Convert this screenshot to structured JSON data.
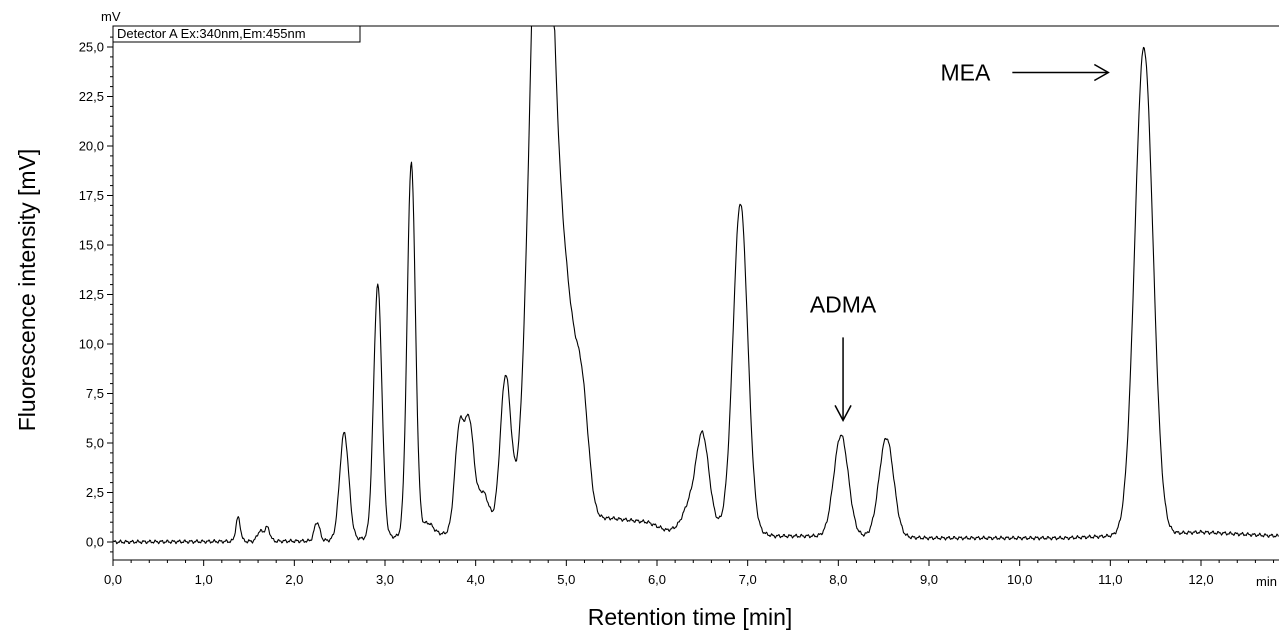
{
  "chart_data": {
    "type": "line",
    "xlabel": "Retention time [min]",
    "ylabel": "Fluorescence intensity [mV]",
    "x_unit": "min",
    "y_unit": "mV",
    "xlim": [
      0,
      12.85
    ],
    "ylim": [
      -0.75,
      26.0
    ],
    "x_ticks": [
      "0,0",
      "1,0",
      "2,0",
      "3,0",
      "4,0",
      "5,0",
      "6,0",
      "7,0",
      "8,0",
      "9,0",
      "10,0",
      "11,0",
      "12,0"
    ],
    "y_ticks": [
      "0,0",
      "2,5",
      "5,0",
      "7,5",
      "10,0",
      "12,5",
      "15,0",
      "17,5",
      "20,0",
      "22,5",
      "25,0"
    ],
    "grid": false,
    "legend": "top-left",
    "series": [
      {
        "name": "Detector A Ex:340nm,Em:455nm",
        "baseline": [
          [
            0,
            0.0
          ],
          [
            2.2,
            0.05
          ],
          [
            2.5,
            0.1
          ],
          [
            3.6,
            0.4
          ],
          [
            4.1,
            0.5
          ],
          [
            4.45,
            0.5
          ],
          [
            5.35,
            1.2
          ],
          [
            5.5,
            1.2
          ],
          [
            5.9,
            1.0
          ],
          [
            6.1,
            0.6
          ],
          [
            6.6,
            0.9
          ],
          [
            7.3,
            0.3
          ],
          [
            8.3,
            0.3
          ],
          [
            9.0,
            0.2
          ],
          [
            10.5,
            0.2
          ],
          [
            11.0,
            0.3
          ],
          [
            12.0,
            0.5
          ],
          [
            12.85,
            0.3
          ]
        ],
        "peaks": [
          {
            "rt": 1.38,
            "height": 1.2,
            "width": 0.025
          },
          {
            "rt": 1.62,
            "height": 0.5,
            "width": 0.03
          },
          {
            "rt": 1.7,
            "height": 0.7,
            "width": 0.03
          },
          {
            "rt": 2.25,
            "height": 0.95,
            "width": 0.03
          },
          {
            "rt": 2.55,
            "height": 5.4,
            "width": 0.05
          },
          {
            "rt": 2.92,
            "height": 12.8,
            "width": 0.045
          },
          {
            "rt": 3.29,
            "height": 18.9,
            "width": 0.045
          },
          {
            "rt": 3.47,
            "height": 0.6,
            "width": 0.06
          },
          {
            "rt": 3.82,
            "height": 5.2,
            "width": 0.05
          },
          {
            "rt": 3.93,
            "height": 5.2,
            "width": 0.05
          },
          {
            "rt": 4.08,
            "height": 2.0,
            "width": 0.07
          },
          {
            "rt": 4.33,
            "height": 7.8,
            "width": 0.06
          },
          {
            "rt": 4.73,
            "height": 40.0,
            "width": 0.12
          },
          {
            "rt": 5.0,
            "height": 10.0,
            "width": 0.11
          },
          {
            "rt": 5.18,
            "height": 4.8,
            "width": 0.07
          },
          {
            "rt": 6.35,
            "height": 1.0,
            "width": 0.07
          },
          {
            "rt": 6.5,
            "height": 4.6,
            "width": 0.07
          },
          {
            "rt": 6.92,
            "height": 16.5,
            "width": 0.08
          },
          {
            "rt": 8.03,
            "height": 5.1,
            "width": 0.08
          },
          {
            "rt": 8.53,
            "height": 5.0,
            "width": 0.08
          },
          {
            "rt": 11.37,
            "height": 24.6,
            "width": 0.1
          }
        ]
      }
    ],
    "annotations": [
      {
        "text": "MEA",
        "arrow": "right",
        "target_x": 11.0,
        "target_y": 22.5
      },
      {
        "text": "ADMA",
        "arrow": "down",
        "target_x": 8.03,
        "target_y": 7.0
      }
    ]
  }
}
